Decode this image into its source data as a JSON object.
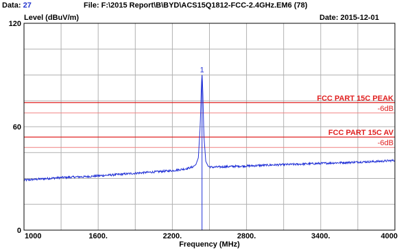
{
  "header": {
    "data_label": "Data:",
    "data_value": "27",
    "file_text": "File: F:\\2015 Report\\B\\BYD\\ACS15Q1812-FCC-2.4GHz.EM6  (78)",
    "level_label": "Level (dBuV/m)",
    "date_text": "Date: 2015-12-01"
  },
  "colors": {
    "trace": "#1f2fd6",
    "limit": "#e02020",
    "limit_margin": "#f08080",
    "grid": "#b0b0b0",
    "frame": "#000000"
  },
  "chart_data": {
    "type": "line",
    "xlabel": "Frequency (MHz)",
    "ylabel": "Level (dBuV/m)",
    "xlim": [
      1000,
      4000
    ],
    "ylim": [
      0,
      120
    ],
    "x_ticks": [
      {
        "value": 1000,
        "label": "1000"
      },
      {
        "value": 1600,
        "label": "1600."
      },
      {
        "value": 2200,
        "label": "2200."
      },
      {
        "value": 2800,
        "label": "2800."
      },
      {
        "value": 3400,
        "label": "3400."
      },
      {
        "value": 4000,
        "label": "4000"
      }
    ],
    "y_ticks": [
      {
        "value": 0,
        "label": "0"
      },
      {
        "value": 60,
        "label": "60"
      },
      {
        "value": 120,
        "label": "120"
      }
    ],
    "grid": true,
    "limit_lines": [
      {
        "name": "FCC PART 15C PEAK",
        "value": 74,
        "margin_label": "-6dB",
        "margin_value": 68
      },
      {
        "name": "FCC PART 15C AV",
        "value": 54,
        "margin_label": "-6dB",
        "margin_value": 48
      }
    ],
    "marker": {
      "label": "1",
      "x": 2440,
      "y": 90
    },
    "series": [
      {
        "x": [
          1000,
          1100,
          1200,
          1300,
          1400,
          1500,
          1600,
          1700,
          1800,
          1900,
          2000,
          2100,
          2200,
          2300,
          2360,
          2390,
          2410,
          2425,
          2435,
          2440,
          2445,
          2455,
          2470,
          2490,
          2520,
          2600,
          2700,
          2800,
          2900,
          3000,
          3100,
          3200,
          3300,
          3400,
          3500,
          3600,
          3700,
          3800,
          3900,
          4000
        ],
        "y": [
          29,
          29.5,
          30,
          30.5,
          30.8,
          31,
          31.5,
          32,
          32.5,
          33,
          33.5,
          34,
          34.5,
          35.5,
          36.5,
          38,
          42,
          60,
          85,
          90,
          84,
          55,
          40,
          37,
          36.5,
          36.7,
          37,
          37.2,
          37.5,
          37.8,
          38,
          38.2,
          38.5,
          38.7,
          39,
          39.2,
          39.5,
          39.7,
          40,
          40.5
        ]
      }
    ]
  }
}
